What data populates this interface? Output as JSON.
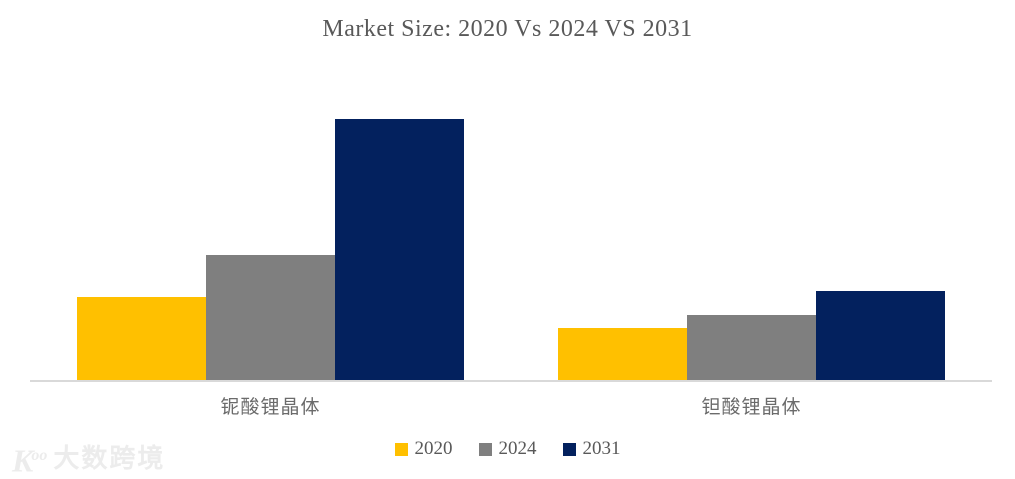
{
  "header": {
    "title": "Market Size: 2020 Vs 2024 VS 2031"
  },
  "chart_data": {
    "type": "bar",
    "title": "Market Size: 2020 Vs 2024 VS 2031",
    "categories": [
      "铌酸锂晶体",
      "钽酸锂晶体"
    ],
    "series": [
      {
        "name": "2020",
        "color": "#FFC000",
        "values": [
          32,
          20
        ]
      },
      {
        "name": "2024",
        "color": "#7F7F7F",
        "values": [
          48,
          25
        ]
      },
      {
        "name": "2031",
        "color": "#03215E",
        "values": [
          100,
          34
        ]
      }
    ],
    "xlabel": "",
    "ylabel": "",
    "ylim": [
      0,
      115
    ],
    "values_unit": "relative market size (estimated from bar heights, 2031 铌酸锂晶体 = 100)",
    "grid": false,
    "axis_line_color": "#D9D9D9",
    "legend_position": "bottom"
  },
  "legend": {
    "items": [
      {
        "label": "2020",
        "color": "#FFC000"
      },
      {
        "label": "2024",
        "color": "#7F7F7F"
      },
      {
        "label": "2031",
        "color": "#03215E"
      }
    ]
  },
  "watermark": {
    "logo": "Koo",
    "text": "大数跨境"
  }
}
